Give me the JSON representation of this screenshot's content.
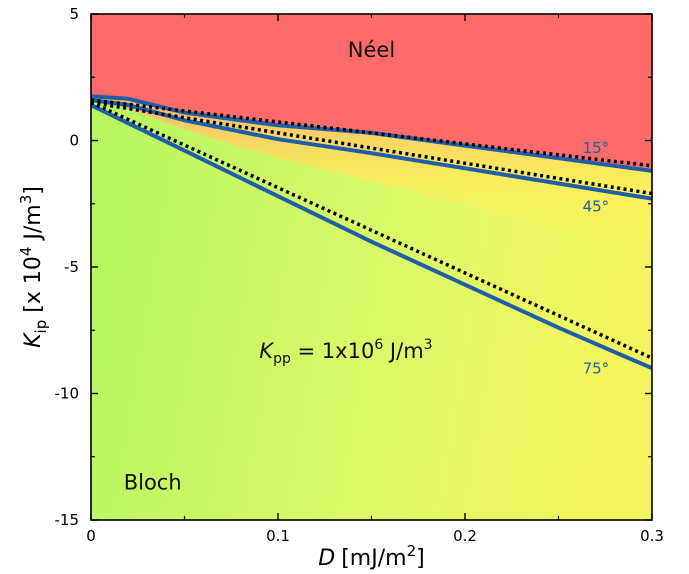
{
  "chart_data": {
    "type": "line",
    "xlabel_symbol": "D",
    "xlabel_unit": "[mJ/m",
    "xlabel_unit_sup": "2",
    "xlabel_unit_end": "]",
    "ylabel_symbol": "K",
    "ylabel_sub": "ip",
    "ylabel_unit": " [x 10",
    "ylabel_unit_sup": "4",
    "ylabel_unit_mid": " J/m",
    "ylabel_unit_sup2": "3",
    "ylabel_unit_end": "]",
    "xlim": [
      0,
      0.3
    ],
    "ylim": [
      -15,
      5
    ],
    "x_ticks": [
      0,
      0.1,
      0.2,
      0.3
    ],
    "x_tick_labels": [
      "0",
      "0.1",
      "0.2",
      "0.3"
    ],
    "y_ticks": [
      5,
      0,
      -5,
      -10,
      -15
    ],
    "y_tick_labels": [
      "5",
      "0",
      "-5",
      "-10",
      "-15"
    ],
    "regions": [
      {
        "label": "Néel",
        "color": "#ff6b6b",
        "x": 0.15,
        "y": 3.3
      },
      {
        "label": "Bloch",
        "color": "#b5f560",
        "x": 0.033,
        "y": -13.8
      }
    ],
    "annotation": {
      "symbol": "K",
      "sub": "pp",
      "rest": " = 1x10",
      "sup": "6",
      "unit": " J/m",
      "unit_sup": "3",
      "x": 0.09,
      "y": -8.6
    },
    "series": [
      {
        "label": "15°",
        "color": "#1f5fa8",
        "label_pos": [
          0.27,
          -0.5
        ],
        "solid": [
          [
            0,
            1.75
          ],
          [
            0.02,
            1.65
          ],
          [
            0.05,
            1.1
          ],
          [
            0.1,
            0.6
          ],
          [
            0.15,
            0.3
          ],
          [
            0.2,
            -0.2
          ],
          [
            0.25,
            -0.7
          ],
          [
            0.3,
            -1.2
          ]
        ],
        "dotted": [
          [
            0,
            1.6
          ],
          [
            0.3,
            -1.0
          ]
        ]
      },
      {
        "label": "45°",
        "color": "#1f5fa8",
        "label_pos": [
          0.27,
          -2.8
        ],
        "solid": [
          [
            0,
            1.6
          ],
          [
            0.02,
            1.4
          ],
          [
            0.05,
            0.8
          ],
          [
            0.1,
            0.05
          ],
          [
            0.15,
            -0.5
          ],
          [
            0.2,
            -1.1
          ],
          [
            0.25,
            -1.7
          ],
          [
            0.3,
            -2.3
          ]
        ],
        "dotted": [
          [
            0,
            1.5
          ],
          [
            0.3,
            -2.1
          ]
        ]
      },
      {
        "label": "75°",
        "color": "#1f5fa8",
        "label_pos": [
          0.27,
          -9.2
        ],
        "solid": [
          [
            0,
            1.4
          ],
          [
            0.05,
            -0.4
          ],
          [
            0.1,
            -2.2
          ],
          [
            0.15,
            -4.0
          ],
          [
            0.2,
            -5.7
          ],
          [
            0.25,
            -7.4
          ],
          [
            0.3,
            -9.0
          ]
        ],
        "dotted": [
          [
            0,
            1.5
          ],
          [
            0.3,
            -8.6
          ]
        ]
      }
    ]
  }
}
